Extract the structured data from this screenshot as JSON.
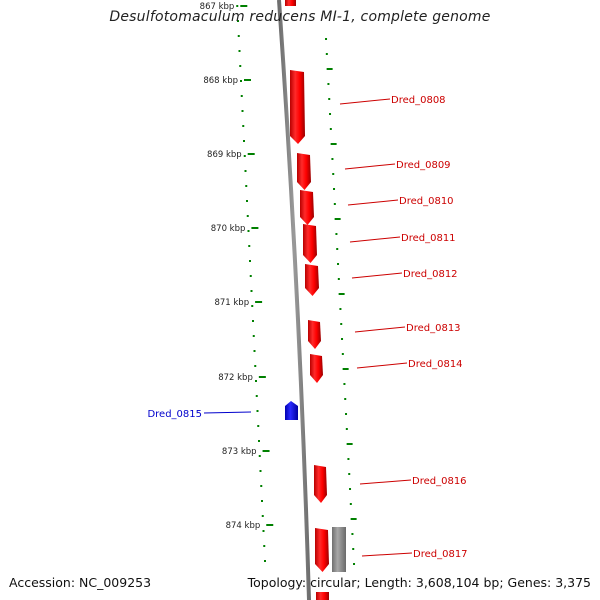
{
  "title": "Desulfotomaculum reducens MI-1, complete genome",
  "footer": {
    "accession": "Accession: NC_009253",
    "summary": "Topology: circular; Length: 3,608,104 bp; Genes: 3,375"
  },
  "colors": {
    "forward_gene": "#ff0000",
    "reverse_gene": "#0000ff",
    "other_feature": "#888888",
    "backbone": "#808080",
    "ruler_ticks": "#008000",
    "forward_label": "#cc0000",
    "reverse_label": "#0000cc"
  },
  "ruler": {
    "unit": "kbp",
    "ticks": [
      "867 kbp",
      "868 kbp",
      "869 kbp",
      "870 kbp",
      "871 kbp",
      "872 kbp",
      "873 kbp",
      "874 kbp"
    ]
  },
  "genes": [
    {
      "label": "Dred_0808",
      "strand": "forward"
    },
    {
      "label": "Dred_0809",
      "strand": "forward"
    },
    {
      "label": "Dred_0810",
      "strand": "forward"
    },
    {
      "label": "Dred_0811",
      "strand": "forward"
    },
    {
      "label": "Dred_0812",
      "strand": "forward"
    },
    {
      "label": "Dred_0813",
      "strand": "forward"
    },
    {
      "label": "Dred_0814",
      "strand": "forward"
    },
    {
      "label": "Dred_0815",
      "strand": "reverse"
    },
    {
      "label": "Dred_0816",
      "strand": "forward"
    },
    {
      "label": "Dred_0817",
      "strand": "forward"
    }
  ]
}
